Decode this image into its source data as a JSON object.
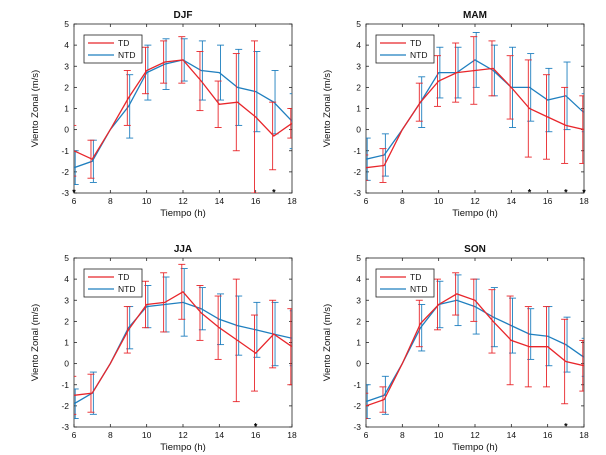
{
  "figure": {
    "xlabel": "Tiempo (h)",
    "ylabel": "Viento Zonal (m/s)",
    "colors": {
      "TD": "#e8262b",
      "NTD": "#1f7fbf",
      "axis": "#222222"
    }
  },
  "chart_data": [
    {
      "type": "line",
      "title": "DJF",
      "xlabel": "Tiempo (h)",
      "ylabel": "Viento Zonal (m/s)",
      "xlim": [
        6,
        18
      ],
      "ylim": [
        -3,
        5
      ],
      "xticks": [
        "6",
        "8",
        "10",
        "12",
        "14",
        "16",
        "18"
      ],
      "yticks": [
        "-3",
        "-2",
        "-1",
        "0",
        "1",
        "2",
        "3",
        "4",
        "5"
      ],
      "x": [
        6,
        7,
        8,
        9,
        10,
        11,
        12,
        13,
        14,
        15,
        16,
        17,
        18
      ],
      "legend": [
        "TD",
        "NTD"
      ],
      "series": [
        {
          "name": "TD",
          "values": [
            -1.0,
            -1.4,
            0.0,
            1.5,
            2.8,
            3.2,
            3.3,
            2.3,
            1.2,
            1.3,
            0.6,
            -0.3,
            0.3
          ],
          "errors": [
            1.2,
            0.9,
            0.0,
            1.3,
            1.1,
            1.0,
            1.1,
            1.4,
            1.1,
            2.3,
            3.6,
            1.6,
            0.7
          ]
        },
        {
          "name": "NTD",
          "values": [
            -1.8,
            -1.5,
            0.0,
            1.1,
            2.7,
            3.1,
            3.3,
            2.8,
            2.7,
            2.0,
            1.8,
            1.3,
            0.4
          ],
          "errors": [
            0.8,
            1.0,
            0.0,
            1.5,
            1.3,
            1.2,
            1.0,
            1.4,
            1.3,
            1.8,
            1.9,
            1.5,
            1.3
          ]
        }
      ],
      "significant_x": [
        6,
        17
      ]
    },
    {
      "type": "line",
      "title": "MAM",
      "xlabel": "Tiempo (h)",
      "ylabel": "Viento Zonal (m/s)",
      "xlim": [
        6,
        18
      ],
      "ylim": [
        -3,
        5
      ],
      "xticks": [
        "6",
        "8",
        "10",
        "12",
        "14",
        "16",
        "18"
      ],
      "yticks": [
        "-3",
        "-2",
        "-1",
        "0",
        "1",
        "2",
        "3",
        "4",
        "5"
      ],
      "x": [
        6,
        7,
        8,
        9,
        10,
        11,
        12,
        13,
        14,
        15,
        16,
        17,
        18
      ],
      "legend": [
        "TD",
        "NTD"
      ],
      "series": [
        {
          "name": "TD",
          "values": [
            -1.8,
            -1.7,
            0.0,
            1.3,
            2.3,
            2.7,
            2.8,
            2.9,
            2.0,
            1.0,
            0.6,
            0.2,
            0.0
          ],
          "errors": [
            0.6,
            0.8,
            0.0,
            0.9,
            1.2,
            1.4,
            1.6,
            1.3,
            1.5,
            2.3,
            2.0,
            1.8,
            1.6
          ]
        },
        {
          "name": "NTD",
          "values": [
            -1.4,
            -1.2,
            0.0,
            1.3,
            2.7,
            2.7,
            3.3,
            2.8,
            2.0,
            2.0,
            1.4,
            1.6,
            0.8
          ],
          "errors": [
            1.0,
            1.0,
            0.0,
            1.2,
            1.2,
            1.2,
            1.3,
            1.2,
            1.9,
            1.6,
            1.5,
            1.6,
            0.9
          ]
        }
      ],
      "significant_x": [
        15,
        17,
        18
      ]
    },
    {
      "type": "line",
      "title": "JJA",
      "xlabel": "Tiempo (h)",
      "ylabel": "Viento Zonal (m/s)",
      "xlim": [
        6,
        18
      ],
      "ylim": [
        -3,
        5
      ],
      "xticks": [
        "6",
        "8",
        "10",
        "12",
        "14",
        "16",
        "18"
      ],
      "yticks": [
        "-3",
        "-2",
        "-1",
        "0",
        "1",
        "2",
        "3",
        "4",
        "5"
      ],
      "x": [
        6,
        7,
        8,
        9,
        10,
        11,
        12,
        13,
        14,
        15,
        16,
        17,
        18
      ],
      "legend": [
        "TD",
        "NTD"
      ],
      "series": [
        {
          "name": "TD",
          "values": [
            -1.5,
            -1.4,
            0.0,
            1.6,
            2.8,
            2.9,
            3.4,
            2.4,
            1.7,
            1.1,
            0.5,
            1.4,
            0.8
          ],
          "errors": [
            0.9,
            0.9,
            0.0,
            1.1,
            1.1,
            1.4,
            1.3,
            1.3,
            1.5,
            2.9,
            1.8,
            1.6,
            1.8
          ]
        },
        {
          "name": "NTD",
          "values": [
            -1.9,
            -1.4,
            0.0,
            1.7,
            2.7,
            2.8,
            2.9,
            2.6,
            2.1,
            1.8,
            1.6,
            1.4,
            1.2
          ],
          "errors": [
            0.7,
            1.0,
            0.0,
            1.0,
            1.0,
            1.3,
            1.6,
            1.0,
            1.2,
            1.4,
            1.3,
            1.5,
            1.3
          ]
        }
      ],
      "significant_x": [
        16
      ]
    },
    {
      "type": "line",
      "title": "SON",
      "xlabel": "Tiempo (h)",
      "ylabel": "Viento Zonal (m/s)",
      "xlim": [
        6,
        18
      ],
      "ylim": [
        -3,
        5
      ],
      "xticks": [
        "6",
        "8",
        "10",
        "12",
        "14",
        "16",
        "18"
      ],
      "yticks": [
        "-3",
        "-2",
        "-1",
        "0",
        "1",
        "2",
        "3",
        "4",
        "5"
      ],
      "x": [
        6,
        7,
        8,
        9,
        10,
        11,
        12,
        13,
        14,
        15,
        16,
        17,
        18
      ],
      "legend": [
        "TD",
        "NTD"
      ],
      "series": [
        {
          "name": "TD",
          "values": [
            -2.0,
            -1.7,
            0.0,
            1.9,
            2.8,
            3.3,
            3.0,
            2.0,
            1.1,
            0.8,
            0.8,
            0.1,
            -0.1
          ],
          "errors": [
            0.6,
            0.6,
            0.0,
            1.1,
            1.2,
            1.0,
            1.0,
            1.5,
            2.1,
            1.9,
            1.9,
            2.0,
            1.2
          ]
        },
        {
          "name": "NTD",
          "values": [
            -1.8,
            -1.5,
            0.0,
            1.7,
            2.8,
            3.0,
            2.7,
            2.2,
            1.8,
            1.4,
            1.3,
            0.9,
            0.3
          ],
          "errors": [
            0.8,
            0.9,
            0.0,
            1.1,
            1.1,
            1.2,
            1.3,
            1.4,
            1.3,
            1.2,
            1.4,
            1.3,
            0.9
          ]
        }
      ],
      "significant_x": [
        17
      ]
    }
  ]
}
